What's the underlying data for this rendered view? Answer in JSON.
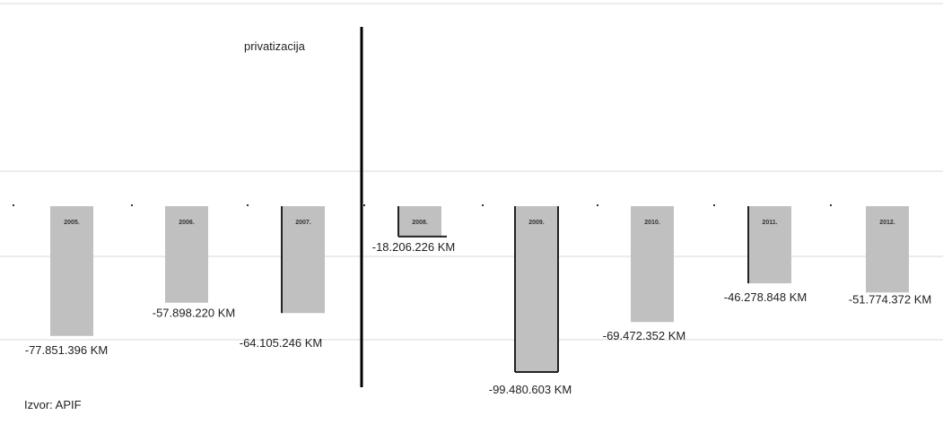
{
  "chart_data": {
    "type": "bar",
    "categories": [
      "2005.",
      "2006.",
      "2007.",
      "2008.",
      "2009.",
      "2010.",
      "2011.",
      "2012."
    ],
    "values": [
      -77851396,
      -57898220,
      -64105246,
      -18206226,
      -99480603,
      -69472352,
      -46278848,
      -51774372
    ],
    "value_labels": [
      "-77.851.396 KM",
      "-57.898.220 KM",
      "-64.105.246 KM",
      "-18.206.226 KM",
      "-99.480.603 KM",
      "-69.472.352 KM",
      "-46.278.848 KM",
      "-51.774.372 KM"
    ],
    "title": "",
    "xlabel": "",
    "ylabel": "",
    "ylim": [
      -100000000,
      0
    ],
    "grid": true,
    "annotation": {
      "text": "privatizacija",
      "between": [
        "2007.",
        "2008."
      ]
    },
    "source": "Izvor: APIF",
    "colors": {
      "bar": "#c0c0c0",
      "bar_edge": "#222222",
      "grid": "#d9d9d9",
      "divider": "#000000"
    }
  }
}
